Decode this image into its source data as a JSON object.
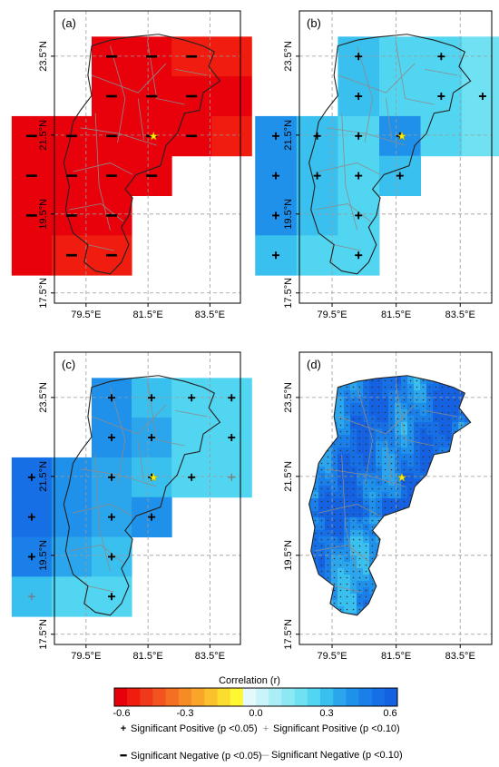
{
  "panels": [
    {
      "label": "(a)",
      "type": "grid",
      "value": -0.6,
      "cells": [
        [
          0,
          0,
          -0.55
        ],
        [
          1,
          0,
          -0.55
        ],
        [
          2,
          0,
          -0.52
        ],
        [
          3,
          0,
          -0.5
        ],
        [
          0,
          1,
          -0.55
        ],
        [
          1,
          1,
          -0.58
        ],
        [
          2,
          1,
          -0.6
        ],
        [
          3,
          1,
          -0.55
        ],
        [
          -2,
          2,
          -0.6
        ],
        [
          -1,
          2,
          -0.6
        ],
        [
          0,
          2,
          -0.6
        ],
        [
          1,
          2,
          -0.6
        ],
        [
          2,
          2,
          -0.55
        ],
        [
          3,
          2,
          -0.5
        ],
        [
          -2,
          3,
          -0.6
        ],
        [
          -1,
          3,
          -0.6
        ],
        [
          0,
          3,
          -0.6
        ],
        [
          1,
          3,
          -0.55
        ],
        [
          -2,
          4,
          -0.6
        ],
        [
          -1,
          4,
          -0.58
        ],
        [
          0,
          4,
          -0.55
        ],
        [
          -2,
          5,
          -0.55
        ],
        [
          -1,
          5,
          -0.52
        ],
        [
          0,
          5,
          -0.5
        ]
      ],
      "marks": [
        [
          0,
          0,
          "sn"
        ],
        [
          1,
          0,
          "sn"
        ],
        [
          2,
          0,
          "sn"
        ],
        [
          0,
          1,
          "sn"
        ],
        [
          1,
          1,
          "sn"
        ],
        [
          2,
          1,
          "sn"
        ],
        [
          -2,
          2,
          "sn"
        ],
        [
          -1,
          2,
          "sn"
        ],
        [
          0,
          2,
          "sn"
        ],
        [
          1,
          2,
          "sn"
        ],
        [
          2,
          2,
          "sn"
        ],
        [
          -2,
          3,
          "sn"
        ],
        [
          -1,
          3,
          "sn"
        ],
        [
          0,
          3,
          "sn"
        ],
        [
          1,
          3,
          "sn"
        ],
        [
          -2,
          4,
          "sn"
        ],
        [
          -1,
          4,
          "sn"
        ],
        [
          0,
          4,
          "sn"
        ],
        [
          -1,
          5,
          "sn"
        ],
        [
          0,
          5,
          "sn"
        ]
      ]
    },
    {
      "label": "(b)",
      "type": "grid",
      "cells": [
        [
          0,
          0,
          0.3
        ],
        [
          1,
          0,
          0.27
        ],
        [
          2,
          0,
          0.24
        ],
        [
          3,
          0,
          0.2
        ],
        [
          0,
          1,
          0.3
        ],
        [
          1,
          1,
          0.27
        ],
        [
          2,
          1,
          0.22
        ],
        [
          3,
          1,
          0.2
        ],
        [
          -2,
          2,
          0.42
        ],
        [
          -1,
          2,
          0.3
        ],
        [
          0,
          2,
          0.27
        ],
        [
          1,
          2,
          0.4
        ],
        [
          2,
          2,
          0.22
        ],
        [
          3,
          2,
          0.2
        ],
        [
          -2,
          3,
          0.42
        ],
        [
          -1,
          3,
          0.3
        ],
        [
          0,
          3,
          0.27
        ],
        [
          1,
          3,
          0.3
        ],
        [
          -2,
          4,
          0.4
        ],
        [
          -1,
          4,
          0.3
        ],
        [
          0,
          4,
          0.22
        ],
        [
          -2,
          5,
          0.3
        ],
        [
          -1,
          5,
          0.27
        ],
        [
          0,
          5,
          0.22
        ]
      ],
      "marks": [
        [
          0,
          0,
          "sp"
        ],
        [
          2,
          0,
          "sp"
        ],
        [
          0,
          1,
          "sp"
        ],
        [
          2,
          1,
          "sp"
        ],
        [
          3,
          1,
          "sp"
        ],
        [
          -2,
          2,
          "sp"
        ],
        [
          -1,
          2,
          "sp"
        ],
        [
          0,
          2,
          "sp"
        ],
        [
          1,
          2,
          "sp"
        ],
        [
          -2,
          3,
          "sp"
        ],
        [
          -1,
          3,
          "sp"
        ],
        [
          0,
          3,
          "sp"
        ],
        [
          1,
          3,
          "sp"
        ],
        [
          -2,
          4,
          "sp"
        ],
        [
          0,
          4,
          "sp"
        ],
        [
          -2,
          5,
          "sp"
        ],
        [
          0,
          5,
          "sp"
        ]
      ]
    },
    {
      "label": "(c)",
      "type": "grid",
      "cells": [
        [
          0,
          0,
          0.42
        ],
        [
          1,
          0,
          0.3
        ],
        [
          2,
          0,
          0.27
        ],
        [
          3,
          0,
          0.27
        ],
        [
          0,
          1,
          0.42
        ],
        [
          1,
          1,
          0.35
        ],
        [
          2,
          1,
          0.27
        ],
        [
          3,
          1,
          0.22
        ],
        [
          -2,
          2,
          0.5
        ],
        [
          -1,
          2,
          0.42
        ],
        [
          0,
          2,
          0.35
        ],
        [
          1,
          2,
          0.3
        ],
        [
          2,
          2,
          0.27
        ],
        [
          3,
          2,
          0.22
        ],
        [
          -2,
          3,
          0.5
        ],
        [
          -1,
          3,
          0.42
        ],
        [
          0,
          3,
          0.35
        ],
        [
          1,
          3,
          0.42
        ],
        [
          -2,
          4,
          0.45
        ],
        [
          -1,
          4,
          0.35
        ],
        [
          0,
          4,
          0.3
        ],
        [
          -2,
          5,
          0.3
        ],
        [
          -1,
          5,
          0.27
        ],
        [
          0,
          5,
          0.27
        ]
      ],
      "marks": [
        [
          0,
          0,
          "sp"
        ],
        [
          1,
          0,
          "sp"
        ],
        [
          2,
          0,
          "sp"
        ],
        [
          3,
          0,
          "sp"
        ],
        [
          0,
          1,
          "sp"
        ],
        [
          1,
          1,
          "sp"
        ],
        [
          3,
          1,
          "sp"
        ],
        [
          -2,
          2,
          "sp"
        ],
        [
          0,
          2,
          "sp"
        ],
        [
          1,
          2,
          "sp"
        ],
        [
          2,
          2,
          "sp"
        ],
        [
          3,
          2,
          "wp"
        ],
        [
          -2,
          3,
          "sp"
        ],
        [
          0,
          3,
          "sp"
        ],
        [
          1,
          3,
          "sp"
        ],
        [
          -2,
          4,
          "sp"
        ],
        [
          0,
          4,
          "sp"
        ],
        [
          -2,
          5,
          "wp"
        ],
        [
          0,
          5,
          "sp"
        ]
      ]
    },
    {
      "label": "(d)",
      "type": "fine"
    }
  ],
  "axes": {
    "xticks": [
      "79.5°E",
      "81.5°E",
      "83.5°E"
    ],
    "yticks": [
      "23.5°N",
      "21.5°N",
      "19.5°N",
      "17.5°N"
    ]
  },
  "colorbar": {
    "title": "Correlation (r)",
    "tick_labels": [
      "-0.6",
      "-0.3",
      "0.0",
      "0.3",
      "0.6"
    ],
    "colors": [
      "#e8000b",
      "#ef1c0f",
      "#f0391a",
      "#f25420",
      "#f46f22",
      "#f68a25",
      "#f8a52a",
      "#fac02d",
      "#fcdc2f",
      "#fef832",
      "#e3f9fc",
      "#c9f5fa",
      "#abeef8",
      "#8de8f5",
      "#6fe1f2",
      "#52d5f0",
      "#3ac0ee",
      "#2ba6ec",
      "#2091ea",
      "#1a7fe8",
      "#166fe5",
      "#1461e2"
    ]
  },
  "legend": {
    "sp05": "Significant Positive (p <0.05)",
    "sp10": "Significant Positive (p <0.10)",
    "sn05": "Significant Negative (p <0.05)",
    "sn10": "Significant Negative (p <0.10)"
  }
}
